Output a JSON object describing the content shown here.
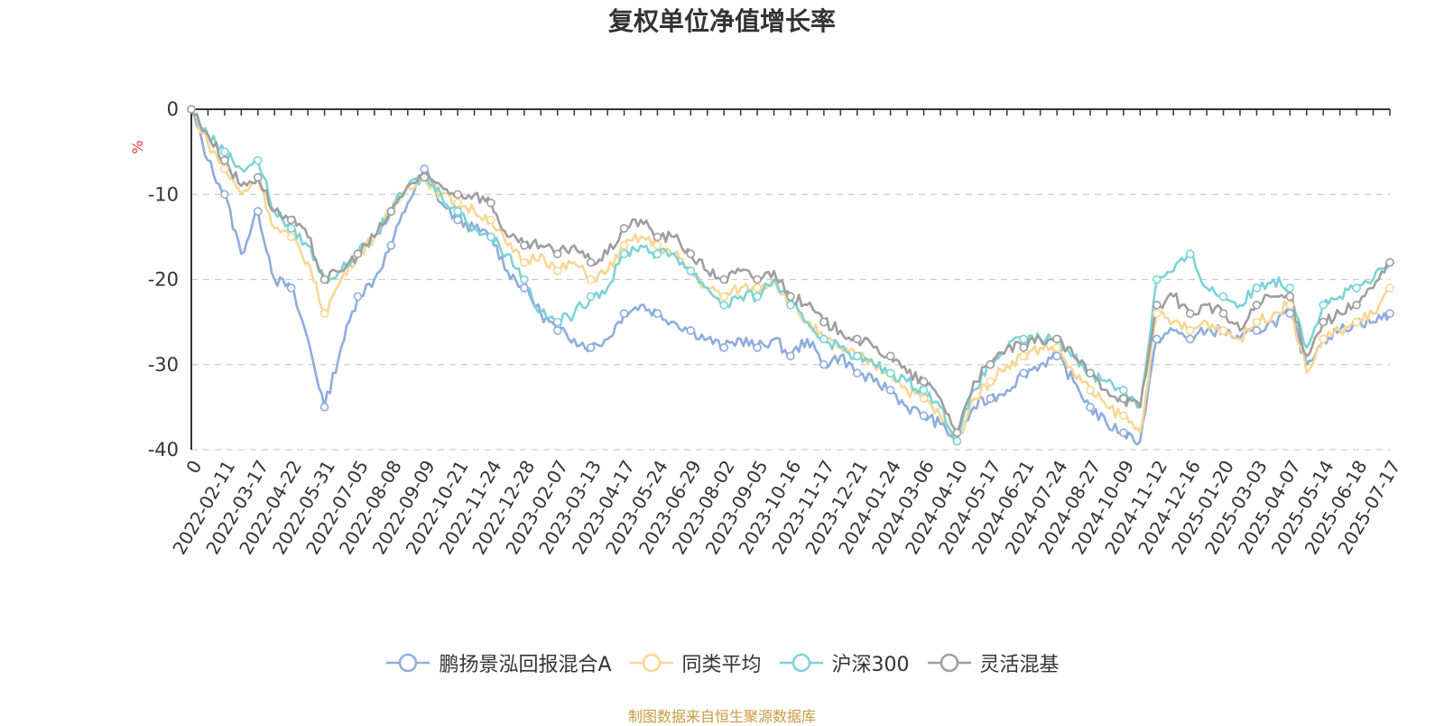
{
  "chart_data": {
    "type": "line",
    "title": "复权单位净值增长率",
    "ylabel": "%",
    "ylim": [
      -40,
      0
    ],
    "yticks": [
      0,
      -10,
      -20,
      -30,
      -40
    ],
    "grid": true,
    "legend_position": "bottom",
    "x_tick_labels": [
      "0",
      "2022-02-11",
      "2022-03-17",
      "2022-04-22",
      "2022-05-31",
      "2022-07-05",
      "2022-08-08",
      "2022-09-09",
      "2022-10-21",
      "2022-11-24",
      "2022-12-28",
      "2023-02-07",
      "2023-03-13",
      "2023-04-17",
      "2023-05-24",
      "2023-06-29",
      "2023-08-02",
      "2023-09-05",
      "2023-10-16",
      "2023-11-17",
      "2023-12-21",
      "2024-01-24",
      "2024-03-06",
      "2024-04-10",
      "2024-05-17",
      "2024-06-21",
      "2024-07-24",
      "2024-08-27",
      "2024-10-09",
      "2024-11-12",
      "2024-12-16",
      "2025-01-20",
      "2025-03-03",
      "2025-04-07",
      "2025-05-14",
      "2025-06-18",
      "2025-07-17"
    ],
    "series": [
      {
        "name": "鹏扬景泓回报混合A",
        "color": "#8eacdc",
        "values": [
          0,
          -6,
          -10,
          -17,
          -12,
          -20,
          -21,
          -27,
          -35,
          -28,
          -22,
          -20,
          -16,
          -11,
          -7,
          -11,
          -13,
          -14,
          -15,
          -19,
          -21,
          -24,
          -26,
          -27,
          -28,
          -27,
          -24,
          -23,
          -24,
          -25,
          -26,
          -27,
          -28,
          -27,
          -28,
          -27,
          -29,
          -27,
          -30,
          -29,
          -31,
          -32,
          -33,
          -35,
          -36,
          -37,
          -39,
          -35,
          -34,
          -33,
          -31,
          -30,
          -29,
          -32,
          -35,
          -37,
          -38,
          -39,
          -27,
          -26,
          -27,
          -26,
          -26,
          -27,
          -26,
          -25,
          -24,
          -30,
          -27,
          -26,
          -25,
          -25,
          -24
        ]
      },
      {
        "name": "同类平均",
        "color": "#f9d694",
        "values": [
          0,
          -4,
          -7,
          -10,
          -8,
          -14,
          -15,
          -18,
          -24,
          -20,
          -17,
          -15,
          -12,
          -9,
          -8,
          -10,
          -11,
          -12,
          -13,
          -16,
          -18,
          -17,
          -19,
          -18,
          -20,
          -19,
          -16,
          -15,
          -16,
          -17,
          -19,
          -21,
          -22,
          -21,
          -21,
          -20,
          -23,
          -25,
          -27,
          -28,
          -29,
          -30,
          -31,
          -33,
          -34,
          -36,
          -39,
          -34,
          -32,
          -30,
          -29,
          -28,
          -28,
          -31,
          -33,
          -35,
          -36,
          -38,
          -24,
          -25,
          -26,
          -25,
          -26,
          -27,
          -25,
          -24,
          -23,
          -31,
          -27,
          -26,
          -25,
          -24,
          -21
        ]
      },
      {
        "name": "沪深300",
        "color": "#7dd3d6",
        "values": [
          0,
          -3,
          -5,
          -7,
          -6,
          -12,
          -14,
          -16,
          -20,
          -19,
          -17,
          -15,
          -12,
          -9,
          -8,
          -10,
          -12,
          -14,
          -15,
          -17,
          -20,
          -24,
          -25,
          -24,
          -22,
          -21,
          -17,
          -16,
          -17,
          -17,
          -19,
          -21,
          -23,
          -22,
          -22,
          -20,
          -23,
          -25,
          -27,
          -28,
          -29,
          -30,
          -31,
          -32,
          -33,
          -35,
          -39,
          -33,
          -30,
          -28,
          -27,
          -27,
          -27,
          -29,
          -31,
          -32,
          -33,
          -35,
          -20,
          -19,
          -17,
          -21,
          -22,
          -23,
          -21,
          -20,
          -21,
          -28,
          -23,
          -22,
          -21,
          -20,
          -18
        ]
      },
      {
        "name": "灵活混基",
        "color": "#9e9e9e",
        "values": [
          0,
          -3,
          -6,
          -9,
          -8,
          -12,
          -13,
          -15,
          -20,
          -19,
          -17,
          -15,
          -12,
          -9,
          -8,
          -9,
          -10,
          -10,
          -11,
          -15,
          -16,
          -16,
          -17,
          -16,
          -18,
          -17,
          -14,
          -13,
          -15,
          -15,
          -17,
          -19,
          -20,
          -19,
          -20,
          -19,
          -22,
          -23,
          -25,
          -26,
          -27,
          -28,
          -29,
          -31,
          -32,
          -34,
          -38,
          -32,
          -30,
          -28,
          -28,
          -27,
          -27,
          -29,
          -31,
          -33,
          -34,
          -35,
          -23,
          -22,
          -24,
          -23,
          -24,
          -26,
          -23,
          -22,
          -22,
          -29,
          -25,
          -24,
          -23,
          -21,
          -18
        ]
      }
    ]
  },
  "footer": {
    "note": "制图数据来自恒生聚源数据库",
    "note_color": "#c89b40"
  },
  "ylabel_color": "#e53935"
}
